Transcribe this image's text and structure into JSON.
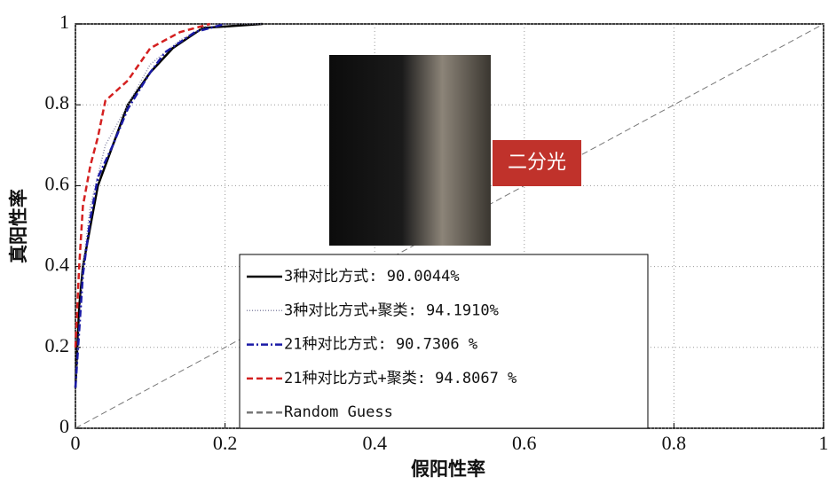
{
  "chart_data": {
    "type": "line",
    "xlabel": "假阳性率",
    "ylabel": "真阳性率",
    "annotation": "二分光",
    "xlim": [
      0,
      1
    ],
    "ylim": [
      0,
      1
    ],
    "xticks": [
      0,
      0.2,
      0.4,
      0.6,
      0.8,
      1
    ],
    "yticks": [
      0,
      0.2,
      0.4,
      0.6,
      0.8,
      1
    ],
    "grid": true,
    "legend": "bottom",
    "series": [
      {
        "name": "3种对比方式: 90.0044%",
        "color": "#000000",
        "dash": "solid",
        "x": [
          0,
          0.005,
          0.01,
          0.02,
          0.03,
          0.05,
          0.07,
          0.1,
          0.13,
          0.17,
          0.25
        ],
        "values": [
          0.1,
          0.3,
          0.4,
          0.5,
          0.6,
          0.7,
          0.8,
          0.88,
          0.94,
          0.99,
          1
        ]
      },
      {
        "name": "3种对比方式+聚类: 94.1910%",
        "color": "#8a8aa8",
        "dash": "dotted",
        "x": [
          0,
          0.01,
          0.02,
          0.04,
          0.07,
          0.1,
          0.14,
          0.18,
          0.25
        ],
        "values": [
          0.1,
          0.4,
          0.55,
          0.7,
          0.8,
          0.9,
          0.96,
          1,
          1
        ]
      },
      {
        "name": "21种对比方式: 90.7306 %",
        "color": "#1a1aa6",
        "dash": "dashdot",
        "x": [
          0,
          0.01,
          0.02,
          0.03,
          0.05,
          0.07,
          0.1,
          0.12,
          0.16,
          0.2
        ],
        "values": [
          0.1,
          0.38,
          0.52,
          0.62,
          0.7,
          0.79,
          0.88,
          0.93,
          0.98,
          1
        ]
      },
      {
        "name": "21种对比方式+聚类: 94.8067 %",
        "color": "#d42020",
        "dash": "dashed",
        "x": [
          0,
          0.005,
          0.01,
          0.02,
          0.03,
          0.04,
          0.07,
          0.1,
          0.14,
          0.18
        ],
        "values": [
          0.2,
          0.4,
          0.55,
          0.65,
          0.72,
          0.81,
          0.86,
          0.94,
          0.98,
          1
        ]
      },
      {
        "name": "Random Guess",
        "color": "#777777",
        "dash": "dashed",
        "x": [
          0,
          1
        ],
        "values": [
          0,
          1
        ]
      }
    ]
  }
}
